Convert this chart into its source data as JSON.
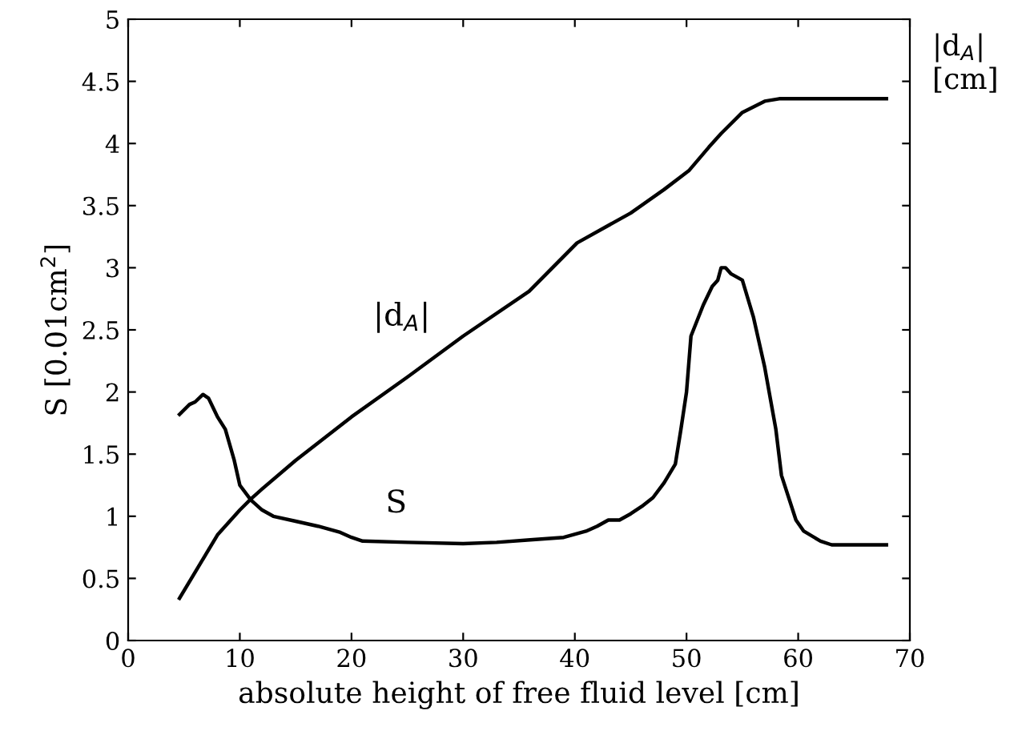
{
  "chart_data": {
    "type": "line",
    "xlabel": "absolute height of free fluid level [cm]",
    "ylabel": "S [0.01cm$^{2}$]",
    "y2label": "|d$_{A}$| [cm]",
    "xlim": [
      0,
      70
    ],
    "xticks": [
      0,
      10,
      20,
      30,
      40,
      50,
      60,
      70
    ],
    "ylim": [
      0,
      5
    ],
    "yticks": [
      0,
      0.5,
      1,
      1.5,
      2,
      2.5,
      3,
      3.5,
      4,
      4.5,
      5
    ],
    "grid": false,
    "legend": false,
    "marker": "none",
    "line_style": "solid",
    "annotations": [
      "|d$_{A}$|",
      "S"
    ],
    "series": [
      {
        "color": "#000000",
        "x": [
          4.6,
          5.5,
          6,
          6.7,
          7.2,
          8,
          8.7,
          9.5,
          10,
          11,
          12,
          13,
          15,
          17,
          19,
          20,
          21,
          25,
          30,
          33,
          36,
          39,
          41,
          42,
          43,
          44,
          45,
          46,
          47,
          48,
          49,
          49.5,
          50,
          50.4,
          51.5,
          52.3,
          52.8,
          53.1,
          53.5,
          54,
          55,
          56,
          57,
          58,
          58.5,
          59.8,
          60.5,
          62,
          63,
          67.9
        ],
        "values": [
          1.82,
          1.9,
          1.92,
          1.98,
          1.95,
          1.8,
          1.7,
          1.45,
          1.25,
          1.13,
          1.05,
          1.0,
          0.96,
          0.92,
          0.87,
          0.83,
          0.8,
          0.79,
          0.78,
          0.79,
          0.81,
          0.83,
          0.88,
          0.92,
          0.97,
          0.97,
          1.02,
          1.08,
          1.15,
          1.27,
          1.42,
          1.7,
          2.0,
          2.45,
          2.7,
          2.85,
          2.9,
          3.0,
          3.0,
          2.95,
          2.9,
          2.6,
          2.2,
          1.7,
          1.33,
          0.97,
          0.88,
          0.8,
          0.77,
          0.77
        ]
      },
      {
        "color": "#000000",
        "x": [
          4.6,
          6,
          7,
          8,
          9,
          10,
          11,
          12,
          15,
          20,
          25,
          30,
          35.9,
          40.2,
          45,
          48,
          50.2,
          52,
          53.1,
          55,
          57,
          58.3,
          67.9
        ],
        "values": [
          0.34,
          0.55,
          0.7,
          0.85,
          0.95,
          1.05,
          1.14,
          1.22,
          1.45,
          1.8,
          2.12,
          2.45,
          2.81,
          3.2,
          3.44,
          3.63,
          3.78,
          3.97,
          4.08,
          4.25,
          4.34,
          4.36,
          4.36
        ]
      }
    ]
  }
}
